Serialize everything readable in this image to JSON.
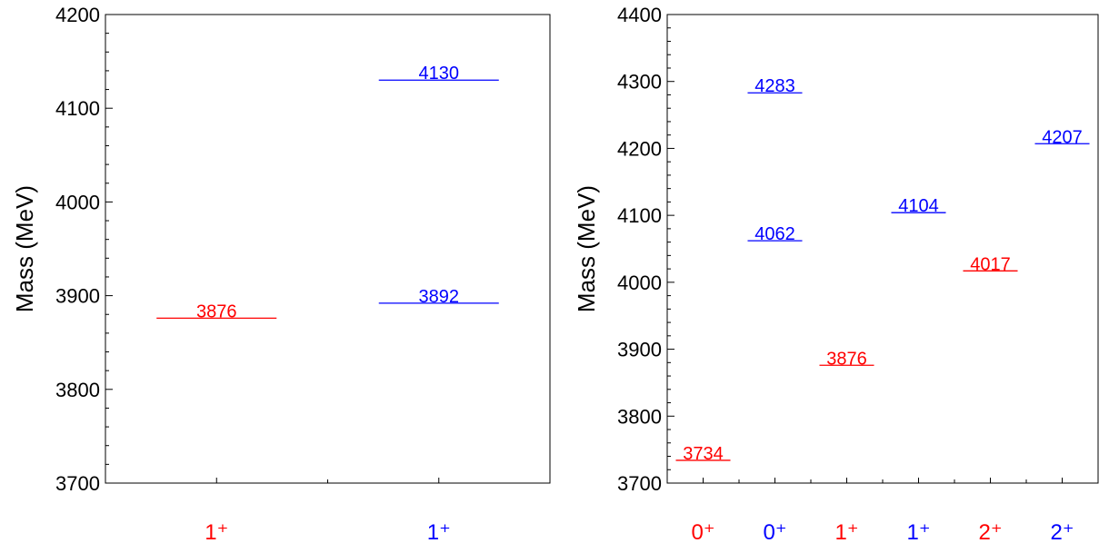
{
  "colors": {
    "red": "#ff0000",
    "blue": "#0000ff",
    "axis": "#000000"
  },
  "chart_data": [
    {
      "type": "level-diagram",
      "ylabel": "Mass (MeV)",
      "ylim": [
        3700,
        4200
      ],
      "yticks": [
        3700,
        3800,
        3900,
        4000,
        4100,
        4200
      ],
      "ytick_labels": [
        "3700",
        "3800",
        "3900",
        "4000",
        "4100",
        "4200"
      ],
      "y_minor_step": 20,
      "categories": [
        {
          "label": "1⁺",
          "color": "red"
        },
        {
          "label": "1⁺",
          "color": "blue"
        }
      ],
      "levels": [
        {
          "category_index": 0,
          "value": 3876,
          "label": "3876",
          "color": "red"
        },
        {
          "category_index": 1,
          "value": 3892,
          "label": "3892",
          "color": "blue"
        },
        {
          "category_index": 1,
          "value": 4130,
          "label": "4130",
          "color": "blue"
        }
      ]
    },
    {
      "type": "level-diagram",
      "ylabel": "Mass (MeV)",
      "ylim": [
        3700,
        4400
      ],
      "yticks": [
        3700,
        3800,
        3900,
        4000,
        4100,
        4200,
        4300,
        4400
      ],
      "ytick_labels": [
        "3700",
        "3800",
        "3900",
        "4000",
        "4100",
        "4200",
        "4300",
        "4400"
      ],
      "y_minor_step": 20,
      "categories": [
        {
          "label": "0⁺",
          "color": "red"
        },
        {
          "label": "0⁺",
          "color": "blue"
        },
        {
          "label": "1⁺",
          "color": "red"
        },
        {
          "label": "1⁺",
          "color": "blue"
        },
        {
          "label": "2⁺",
          "color": "red"
        },
        {
          "label": "2⁺",
          "color": "blue"
        }
      ],
      "levels": [
        {
          "category_index": 0,
          "value": 3734,
          "label": "3734",
          "color": "red"
        },
        {
          "category_index": 1,
          "value": 4062,
          "label": "4062",
          "color": "blue"
        },
        {
          "category_index": 1,
          "value": 4283,
          "label": "4283",
          "color": "blue"
        },
        {
          "category_index": 2,
          "value": 3876,
          "label": "3876",
          "color": "red"
        },
        {
          "category_index": 3,
          "value": 4104,
          "label": "4104",
          "color": "blue"
        },
        {
          "category_index": 4,
          "value": 4017,
          "label": "4017",
          "color": "red"
        },
        {
          "category_index": 5,
          "value": 4207,
          "label": "4207",
          "color": "blue"
        }
      ]
    }
  ]
}
